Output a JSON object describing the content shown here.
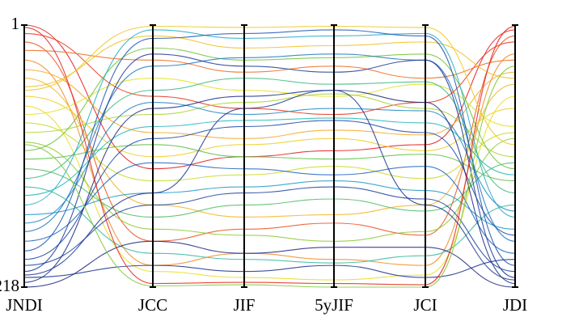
{
  "chart_data": {
    "type": "parallel",
    "categories": [
      "JNDI",
      "JCC",
      "JIF",
      "5yJIF",
      "JCI",
      "JDI"
    ],
    "ylim": [
      1,
      218
    ],
    "yticks": [
      1,
      218
    ],
    "colormap": [
      "#e41a1c",
      "#f5a623",
      "#e8e51a",
      "#5fbf3a",
      "#1fb5c9",
      "#1f5fbf",
      "#1a237e"
    ],
    "series": [
      {
        "values": [
          1,
          120,
          110,
          105,
          100,
          5
        ]
      },
      {
        "values": [
          8,
          60,
          70,
          75,
          65,
          15
        ]
      },
      {
        "values": [
          15,
          180,
          170,
          165,
          175,
          10
        ]
      },
      {
        "values": [
          22,
          30,
          40,
          35,
          45,
          30
        ]
      },
      {
        "values": [
          30,
          200,
          190,
          195,
          200,
          25
        ]
      },
      {
        "values": [
          38,
          90,
          95,
          88,
          92,
          40
        ]
      },
      {
        "values": [
          45,
          150,
          160,
          158,
          150,
          50
        ]
      },
      {
        "values": [
          52,
          10,
          20,
          18,
          15,
          45
        ]
      },
      {
        "values": [
          60,
          110,
          100,
          95,
          105,
          70
        ]
      },
      {
        "values": [
          68,
          205,
          210,
          212,
          208,
          60
        ]
      },
      {
        "values": [
          75,
          45,
          55,
          60,
          50,
          85
        ]
      },
      {
        "values": [
          82,
          130,
          125,
          118,
          128,
          90
        ]
      },
      {
        "values": [
          90,
          75,
          65,
          58,
          70,
          110
        ]
      },
      {
        "values": [
          98,
          170,
          175,
          180,
          172,
          95
        ]
      },
      {
        "values": [
          105,
          20,
          30,
          28,
          25,
          120
        ]
      },
      {
        "values": [
          112,
          100,
          110,
          112,
          108,
          130
        ]
      },
      {
        "values": [
          120,
          160,
          150,
          145,
          155,
          115
        ]
      },
      {
        "values": [
          128,
          55,
          45,
          50,
          48,
          140
        ]
      },
      {
        "values": [
          135,
          190,
          195,
          198,
          192,
          150
        ]
      },
      {
        "values": [
          142,
          85,
          80,
          78,
          82,
          125
        ]
      },
      {
        "values": [
          150,
          5,
          12,
          10,
          8,
          160
        ]
      },
      {
        "values": [
          158,
          140,
          135,
          130,
          138,
          170
        ]
      },
      {
        "values": [
          165,
          65,
          75,
          70,
          72,
          155
        ]
      },
      {
        "values": [
          172,
          35,
          28,
          25,
          30,
          180
        ]
      },
      {
        "values": [
          180,
          115,
          120,
          125,
          118,
          190
        ]
      },
      {
        "values": [
          188,
          12,
          8,
          5,
          10,
          200
        ]
      },
      {
        "values": [
          195,
          95,
          85,
          80,
          90,
          175
        ]
      },
      {
        "values": [
          200,
          150,
          140,
          135,
          145,
          205
        ]
      },
      {
        "values": [
          205,
          25,
          35,
          40,
          30,
          210
        ]
      },
      {
        "values": [
          210,
          200,
          205,
          200,
          210,
          195
        ]
      },
      {
        "values": [
          214,
          70,
          60,
          55,
          65,
          215
        ]
      },
      {
        "values": [
          218,
          180,
          190,
          185,
          185,
          218
        ]
      },
      {
        "values": [
          3,
          215,
          214,
          215,
          216,
          2
        ]
      },
      {
        "values": [
          55,
          2,
          3,
          2,
          3,
          100
        ]
      },
      {
        "values": [
          100,
          217,
          216,
          218,
          218,
          35
        ]
      },
      {
        "values": [
          208,
          140,
          70,
          55,
          150,
          212
        ]
      }
    ]
  }
}
